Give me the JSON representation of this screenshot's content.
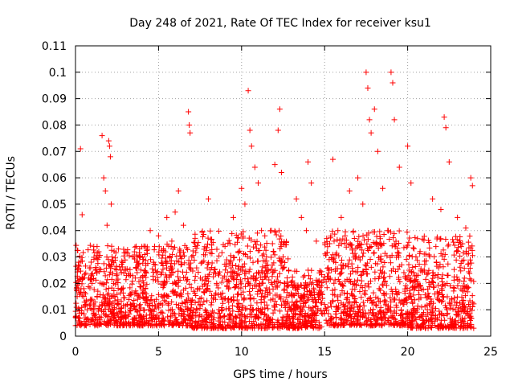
{
  "chart_data": {
    "type": "scatter",
    "title": "Day 248 of 2021, Rate Of TEC Index for receiver ksu1",
    "xlabel": "GPS time / hours",
    "ylabel": "ROTI / TECUs",
    "xlim": [
      0,
      25
    ],
    "ylim": [
      0,
      0.11
    ],
    "xticks": [
      "0",
      "5",
      "10",
      "15",
      "20",
      "25"
    ],
    "yticks": [
      "0",
      "0.01",
      "0.02",
      "0.03",
      "0.04",
      "0.05",
      "0.06",
      "0.07",
      "0.08",
      "0.09",
      "0.1",
      "0.11"
    ],
    "grid": true,
    "marker": "plus",
    "color": "#ff0000",
    "series": [
      {
        "x": [
          0.1,
          0.2,
          0.3,
          0.4,
          0.5,
          0.6,
          0.8,
          1.0,
          1.2,
          1.4,
          1.6,
          1.7,
          1.8,
          1.9,
          2.0,
          2.05,
          2.1,
          2.15,
          2.2,
          2.3,
          2.5,
          2.8,
          3.0,
          3.3,
          3.6,
          3.9,
          4.2,
          4.5,
          4.7,
          5.0,
          5.2,
          5.5,
          5.8,
          6.0,
          6.2,
          6.5,
          6.8,
          6.85,
          6.9,
          7.0,
          7.5,
          8.0,
          8.2,
          8.5,
          9.0,
          9.5,
          9.8,
          10.0,
          10.2,
          10.4,
          10.5,
          10.6,
          10.8,
          11.0,
          11.2,
          11.5,
          11.8,
          12.0,
          12.2,
          12.3,
          12.4,
          12.5,
          13.0,
          13.3,
          13.6,
          13.9,
          14.0,
          14.2,
          14.5,
          15.0,
          15.5,
          15.8,
          16.0,
          16.5,
          17.0,
          17.3,
          17.5,
          17.6,
          17.7,
          17.8,
          18.0,
          18.2,
          18.5,
          18.8,
          19.0,
          19.1,
          19.2,
          19.5,
          20.0,
          20.2,
          20.5,
          21.0,
          21.5,
          22.0,
          22.2,
          22.3,
          22.5,
          23.0,
          23.3,
          23.5,
          23.8,
          23.9
        ],
        "y": [
          0.015,
          0.028,
          0.071,
          0.046,
          0.018,
          0.012,
          0.022,
          0.01,
          0.025,
          0.032,
          0.076,
          0.06,
          0.055,
          0.042,
          0.074,
          0.072,
          0.068,
          0.05,
          0.03,
          0.02,
          0.012,
          0.018,
          0.025,
          0.016,
          0.022,
          0.03,
          0.034,
          0.04,
          0.028,
          0.038,
          0.024,
          0.045,
          0.036,
          0.047,
          0.055,
          0.042,
          0.085,
          0.08,
          0.077,
          0.03,
          0.012,
          0.052,
          0.026,
          0.02,
          0.034,
          0.045,
          0.032,
          0.056,
          0.05,
          0.093,
          0.078,
          0.072,
          0.064,
          0.058,
          0.04,
          0.03,
          0.04,
          0.065,
          0.078,
          0.086,
          0.062,
          0.03,
          0.01,
          0.052,
          0.045,
          0.04,
          0.066,
          0.058,
          0.036,
          0.012,
          0.067,
          0.04,
          0.045,
          0.055,
          0.06,
          0.05,
          0.1,
          0.094,
          0.082,
          0.077,
          0.086,
          0.07,
          0.056,
          0.04,
          0.1,
          0.096,
          0.082,
          0.064,
          0.072,
          0.058,
          0.03,
          0.025,
          0.052,
          0.048,
          0.083,
          0.079,
          0.066,
          0.045,
          0.035,
          0.041,
          0.06,
          0.057
        ],
        "density_bands": [
          {
            "x0": 0.0,
            "x1": 7.0,
            "ymin": 0.004,
            "ymax": 0.035
          },
          {
            "x0": 7.0,
            "x1": 12.8,
            "ymin": 0.003,
            "ymax": 0.04
          },
          {
            "x0": 12.8,
            "x1": 15.0,
            "ymin": 0.003,
            "ymax": 0.025
          },
          {
            "x0": 15.0,
            "x1": 20.0,
            "ymin": 0.004,
            "ymax": 0.04
          },
          {
            "x0": 20.0,
            "x1": 24.0,
            "ymin": 0.003,
            "ymax": 0.038
          }
        ]
      }
    ]
  }
}
